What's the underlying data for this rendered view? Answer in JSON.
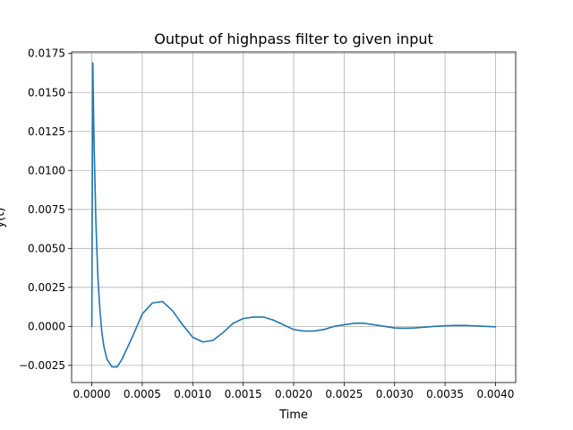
{
  "chart_data": {
    "type": "line",
    "title": "Output of highpass filter to given input",
    "xlabel": "Time",
    "ylabel": "y(t)",
    "xlim": [
      -0.0002,
      0.0042
    ],
    "ylim": [
      -0.0036,
      0.0176
    ],
    "grid": true,
    "x_ticks": [
      0.0,
      0.0005,
      0.001,
      0.0015,
      0.002,
      0.0025,
      0.003,
      0.0035,
      0.004
    ],
    "x_tick_labels": [
      "0.0000",
      "0.0005",
      "0.0010",
      "0.0015",
      "0.0020",
      "0.0025",
      "0.0030",
      "0.0035",
      "0.0040"
    ],
    "y_ticks": [
      -0.0025,
      0.0,
      0.0025,
      0.005,
      0.0075,
      0.01,
      0.0125,
      0.015,
      0.0175
    ],
    "y_tick_labels": [
      "−0.0025",
      "0.0000",
      "0.0025",
      "0.0050",
      "0.0075",
      "0.0100",
      "0.0125",
      "0.0150",
      "0.0175"
    ],
    "series": [
      {
        "color": "#1f77b4",
        "x": [
          0.0,
          1e-05,
          2e-05,
          4e-05,
          6e-05,
          8e-05,
          0.0001,
          0.00012,
          0.00015,
          0.0002,
          0.00025,
          0.0003,
          0.0004,
          0.0005,
          0.0006,
          0.0007,
          0.0008,
          0.0009,
          0.001,
          0.0011,
          0.0012,
          0.0013,
          0.0014,
          0.0015,
          0.0016,
          0.0017,
          0.0018,
          0.0019,
          0.002,
          0.0021,
          0.0022,
          0.0023,
          0.0024,
          0.0025,
          0.0026,
          0.0027,
          0.0028,
          0.0029,
          0.003,
          0.0031,
          0.0032,
          0.0033,
          0.0034,
          0.0035,
          0.0036,
          0.0037,
          0.0038,
          0.0039,
          0.004
        ],
        "y": [
          0.0,
          0.0169,
          0.0125,
          0.0068,
          0.0032,
          0.0011,
          -0.0004,
          -0.0013,
          -0.0021,
          -0.0026,
          -0.0026,
          -0.0021,
          -0.0007,
          0.0008,
          0.0015,
          0.0016,
          0.001,
          0.0001,
          -0.0007,
          -0.001,
          -0.0009,
          -0.0004,
          0.0002,
          0.0005,
          0.0006,
          0.0006,
          0.0004,
          0.0001,
          -0.0002,
          -0.0003,
          -0.0003,
          -0.0002,
          0.0,
          0.0001,
          0.0002,
          0.0002,
          0.0001,
          0.0,
          -0.0001,
          -0.00012,
          -0.0001,
          -5e-05,
          0.0,
          4e-05,
          6e-05,
          6e-05,
          3e-05,
          0.0,
          -3e-05
        ]
      }
    ]
  }
}
